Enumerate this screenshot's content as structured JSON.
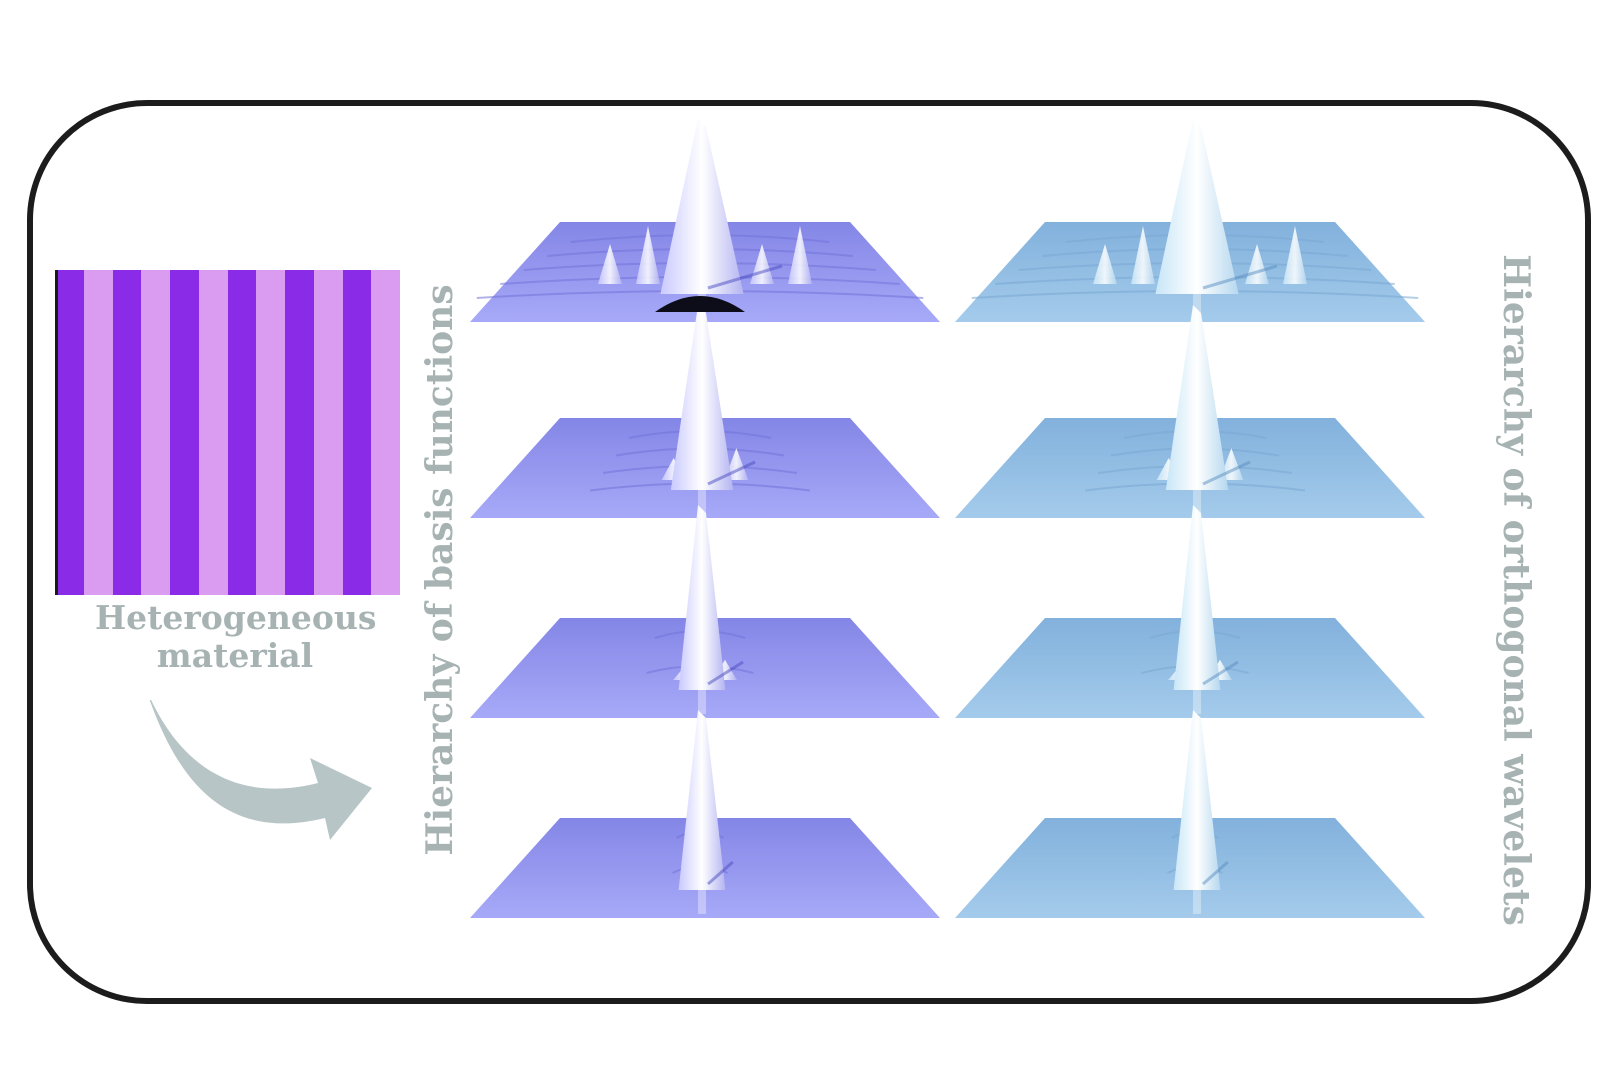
{
  "material": {
    "caption_line1": "Heterogeneous",
    "caption_line2": "material",
    "stripe_count": 12,
    "colors": [
      "#8a2be8",
      "#d99cf0"
    ]
  },
  "labels": {
    "left": "Hierarchy of basis functions",
    "right": "Hierarchy of orthogonal wavelets"
  },
  "colors": {
    "frame": "#1c1c1c",
    "label_text": "#a7b3b3",
    "arrow": "#b8c5c6",
    "basis_surface": "#9b9cf0",
    "wavelet_surface": "#8fb9e2"
  },
  "panels": {
    "rows": 4,
    "columns": [
      "basis-functions",
      "orthogonal-wavelets"
    ],
    "levels": [
      1,
      2,
      3,
      4
    ]
  }
}
